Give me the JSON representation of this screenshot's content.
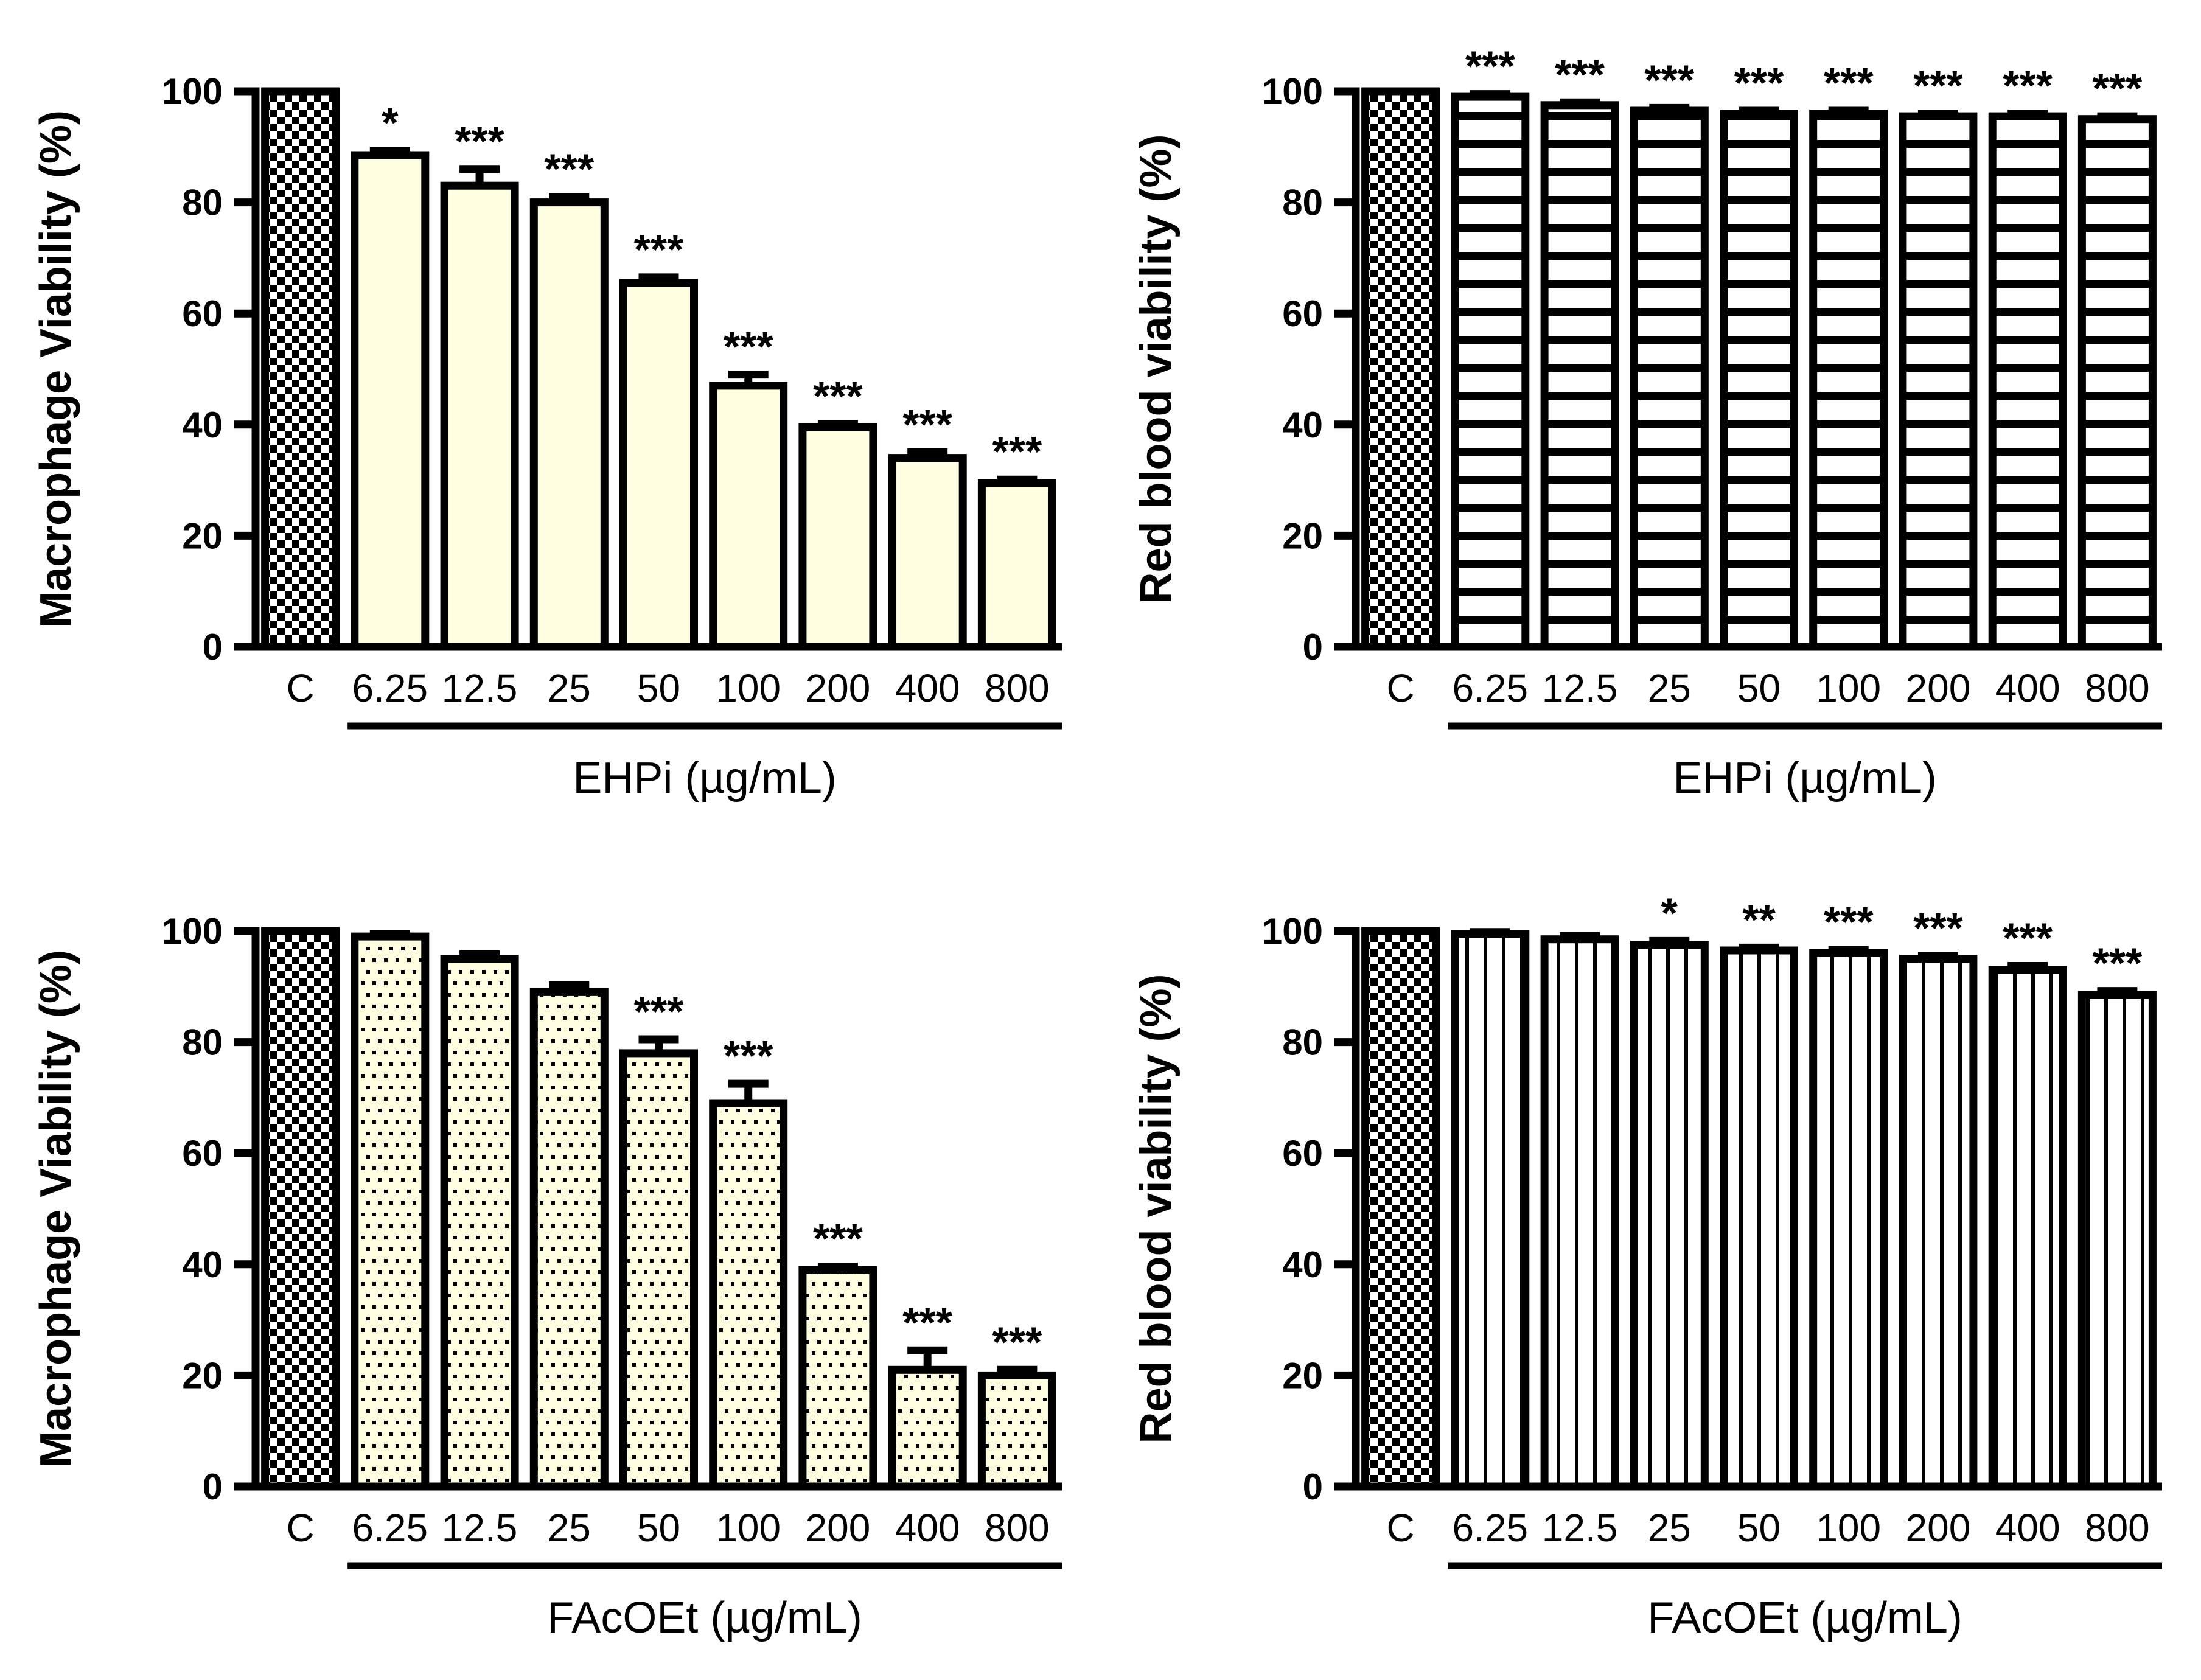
{
  "figure": {
    "background": "#FFFFFF",
    "ink": "#000000",
    "cream_fill": "#FFFDE0",
    "panel_layout": "2x2"
  },
  "chart_data": [
    {
      "id": "tl",
      "position": "top-left",
      "type": "bar",
      "title": "",
      "ylabel": "Macrophage Viability (%)",
      "group_label": "EHPi (µg/mL)",
      "categories": [
        "C",
        "6.25",
        "12.5",
        "25",
        "50",
        "100",
        "200",
        "400",
        "800"
      ],
      "values": [
        100,
        88.5,
        83,
        80,
        65.5,
        47,
        39.5,
        34,
        29.5
      ],
      "errors": [
        0,
        0.8,
        3,
        1,
        1,
        2,
        0.6,
        1,
        0.6
      ],
      "significance": [
        "",
        "*",
        "***",
        "***",
        "***",
        "***",
        "***",
        "***",
        "***"
      ],
      "control_pattern": "checkerboard",
      "treatment_pattern": "solid-cream",
      "ylim": [
        0,
        100
      ],
      "yticks": [
        0,
        20,
        40,
        60,
        80,
        100
      ],
      "grid": false,
      "legend": "none"
    },
    {
      "id": "tr",
      "position": "top-right",
      "type": "bar",
      "title": "",
      "ylabel": "Red blood viability (%)",
      "group_label": "EHPi (µg/mL)",
      "categories": [
        "C",
        "6.25",
        "12.5",
        "25",
        "50",
        "100",
        "200",
        "400",
        "800"
      ],
      "values": [
        100,
        99,
        97.5,
        96.5,
        96,
        96,
        95.5,
        95.5,
        95
      ],
      "errors": [
        0,
        0.5,
        0.5,
        0.5,
        0.5,
        0.5,
        0.5,
        0.5,
        0.5
      ],
      "significance": [
        "",
        "***",
        "***",
        "***",
        "***",
        "***",
        "***",
        "***",
        "***"
      ],
      "control_pattern": "checkerboard",
      "treatment_pattern": "hlines",
      "ylim": [
        0,
        100
      ],
      "yticks": [
        0,
        20,
        40,
        60,
        80,
        100
      ],
      "grid": false,
      "legend": "none"
    },
    {
      "id": "bl",
      "position": "bottom-left",
      "type": "bar",
      "title": "",
      "ylabel": "Macrophage Viability (%)",
      "group_label": "FAcOEt (µg/mL)",
      "categories": [
        "C",
        "6.25",
        "12.5",
        "25",
        "50",
        "100",
        "200",
        "400",
        "800"
      ],
      "values": [
        100,
        99,
        95,
        89,
        78,
        69,
        39,
        21,
        20
      ],
      "errors": [
        0,
        0.5,
        0.8,
        1.2,
        2.5,
        3.5,
        0.6,
        3.5,
        1
      ],
      "significance": [
        "",
        "",
        "",
        "",
        "***",
        "***",
        "***",
        "***",
        "***"
      ],
      "control_pattern": "checkerboard",
      "treatment_pattern": "dots-cream",
      "ylim": [
        0,
        100
      ],
      "yticks": [
        0,
        20,
        40,
        60,
        80,
        100
      ],
      "grid": false,
      "legend": "none"
    },
    {
      "id": "br",
      "position": "bottom-right",
      "type": "bar",
      "title": "",
      "ylabel": "Red blood viability (%)",
      "group_label": "FAcOEt (µg/mL)",
      "categories": [
        "C",
        "6.25",
        "12.5",
        "25",
        "50",
        "100",
        "200",
        "400",
        "800"
      ],
      "values": [
        100,
        99.5,
        98.5,
        97.5,
        96.5,
        96,
        95,
        93,
        88.5
      ],
      "errors": [
        0,
        0.3,
        0.6,
        0.7,
        0.5,
        0.6,
        0.5,
        0.7,
        0.7
      ],
      "significance": [
        "",
        "",
        "",
        "*",
        "**",
        "***",
        "***",
        "***",
        "***"
      ],
      "control_pattern": "checkerboard",
      "treatment_pattern": "vlines",
      "ylim": [
        0,
        100
      ],
      "yticks": [
        0,
        20,
        40,
        60,
        80,
        100
      ],
      "grid": false,
      "legend": "none"
    }
  ]
}
